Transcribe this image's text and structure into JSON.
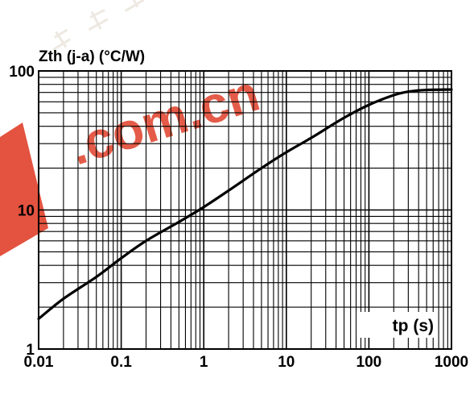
{
  "chart_data": {
    "type": "line",
    "title": "",
    "ylabel": "Zth (j-a) (°C/W)",
    "xlabel": "tp (s)",
    "x_scale": "log",
    "y_scale": "log",
    "xlim": [
      0.01,
      1000
    ],
    "ylim": [
      1,
      100
    ],
    "x_ticks": [
      "0.01",
      "0.1",
      "1",
      "10",
      "100",
      "1000"
    ],
    "y_ticks": [
      "1",
      "10",
      "100"
    ],
    "grid": true,
    "line_color": "#000000",
    "series": [
      {
        "x": [
          0.01,
          0.02,
          0.05,
          0.1,
          0.2,
          0.5,
          1,
          2,
          5,
          10,
          20,
          50,
          100,
          200,
          300,
          500,
          1000
        ],
        "values": [
          1.65,
          2.3,
          3.3,
          4.5,
          6.0,
          8.2,
          10.5,
          13.8,
          20.0,
          26.0,
          33.0,
          46.0,
          57.0,
          67.0,
          71.0,
          73.0,
          73.5
        ]
      }
    ]
  },
  "watermark": {
    "text": ".com.cn",
    "color": "#e0402a"
  }
}
